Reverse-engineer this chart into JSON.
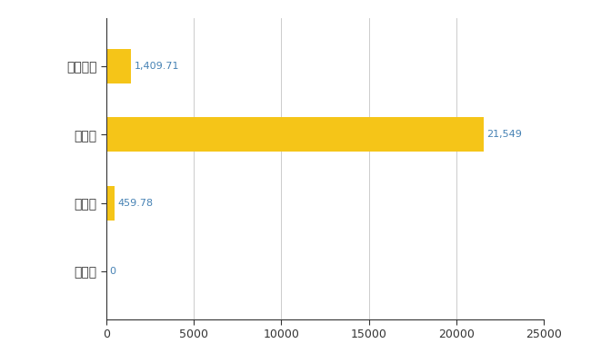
{
  "categories": [
    "全国平均",
    "県最大",
    "県平均",
    "福島町"
  ],
  "values": [
    1409.71,
    21549,
    459.78,
    0
  ],
  "bar_color": "#F5C518",
  "label_color": "#4682B4",
  "value_labels": [
    "1,409.71",
    "21,549",
    "459.78",
    "0"
  ],
  "xlim": [
    0,
    25000
  ],
  "xticks": [
    0,
    5000,
    10000,
    15000,
    20000,
    25000
  ],
  "xtick_labels": [
    "0",
    "5000",
    "10000",
    "15000",
    "20000",
    "25000"
  ],
  "background_color": "#ffffff",
  "grid_color": "#cccccc",
  "axis_color": "#333333",
  "tick_label_color": "#333333",
  "ytick_fontsize": 10,
  "xtick_fontsize": 9,
  "value_label_fontsize": 8
}
